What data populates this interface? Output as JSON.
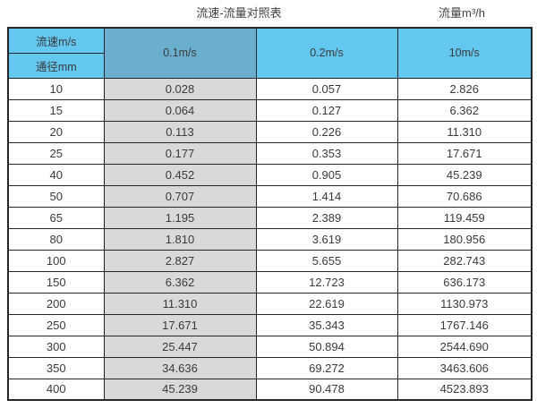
{
  "page": {
    "title": "流速-流量对照表",
    "unit_label": "流量m³/h"
  },
  "chart_data": {
    "type": "table",
    "title": "流速-流量对照表",
    "unit_label": "流量m³/h",
    "corner_labels": {
      "velocity": "流速m/s",
      "diameter": "通径mm"
    },
    "columns": [
      "0.1m/s",
      "0.2m/s",
      "10m/s"
    ],
    "rows": [
      {
        "diameter": "10",
        "values": [
          "0.028",
          "0.057",
          "2.826"
        ]
      },
      {
        "diameter": "15",
        "values": [
          "0.064",
          "0.127",
          "6.362"
        ]
      },
      {
        "diameter": "20",
        "values": [
          "0.113",
          "0.226",
          "11.310"
        ]
      },
      {
        "diameter": "25",
        "values": [
          "0.177",
          "0.353",
          "17.671"
        ]
      },
      {
        "diameter": "40",
        "values": [
          "0.452",
          "0.905",
          "45.239"
        ]
      },
      {
        "diameter": "50",
        "values": [
          "0.707",
          "1.414",
          "70.686"
        ]
      },
      {
        "diameter": "65",
        "values": [
          "1.195",
          "2.389",
          "119.459"
        ]
      },
      {
        "diameter": "80",
        "values": [
          "1.810",
          "3.619",
          "180.956"
        ]
      },
      {
        "diameter": "100",
        "values": [
          "2.827",
          "5.655",
          "282.743"
        ]
      },
      {
        "diameter": "150",
        "values": [
          "6.362",
          "12.723",
          "636.173"
        ]
      },
      {
        "diameter": "200",
        "values": [
          "11.310",
          "22.619",
          "1130.973"
        ]
      },
      {
        "diameter": "250",
        "values": [
          "17.671",
          "35.343",
          "1767.146"
        ]
      },
      {
        "diameter": "300",
        "values": [
          "25.447",
          "50.894",
          "2544.690"
        ]
      },
      {
        "diameter": "350",
        "values": [
          "34.636",
          "69.272",
          "3463.606"
        ]
      },
      {
        "diameter": "400",
        "values": [
          "45.239",
          "90.478",
          "4523.893"
        ]
      }
    ]
  },
  "colors": {
    "header_blue": "#63C7EF",
    "header_blue_dark": "#6BAFCE",
    "column_gray": "#D9D9D9",
    "border": "#262626",
    "text": "#3A3A3A"
  }
}
